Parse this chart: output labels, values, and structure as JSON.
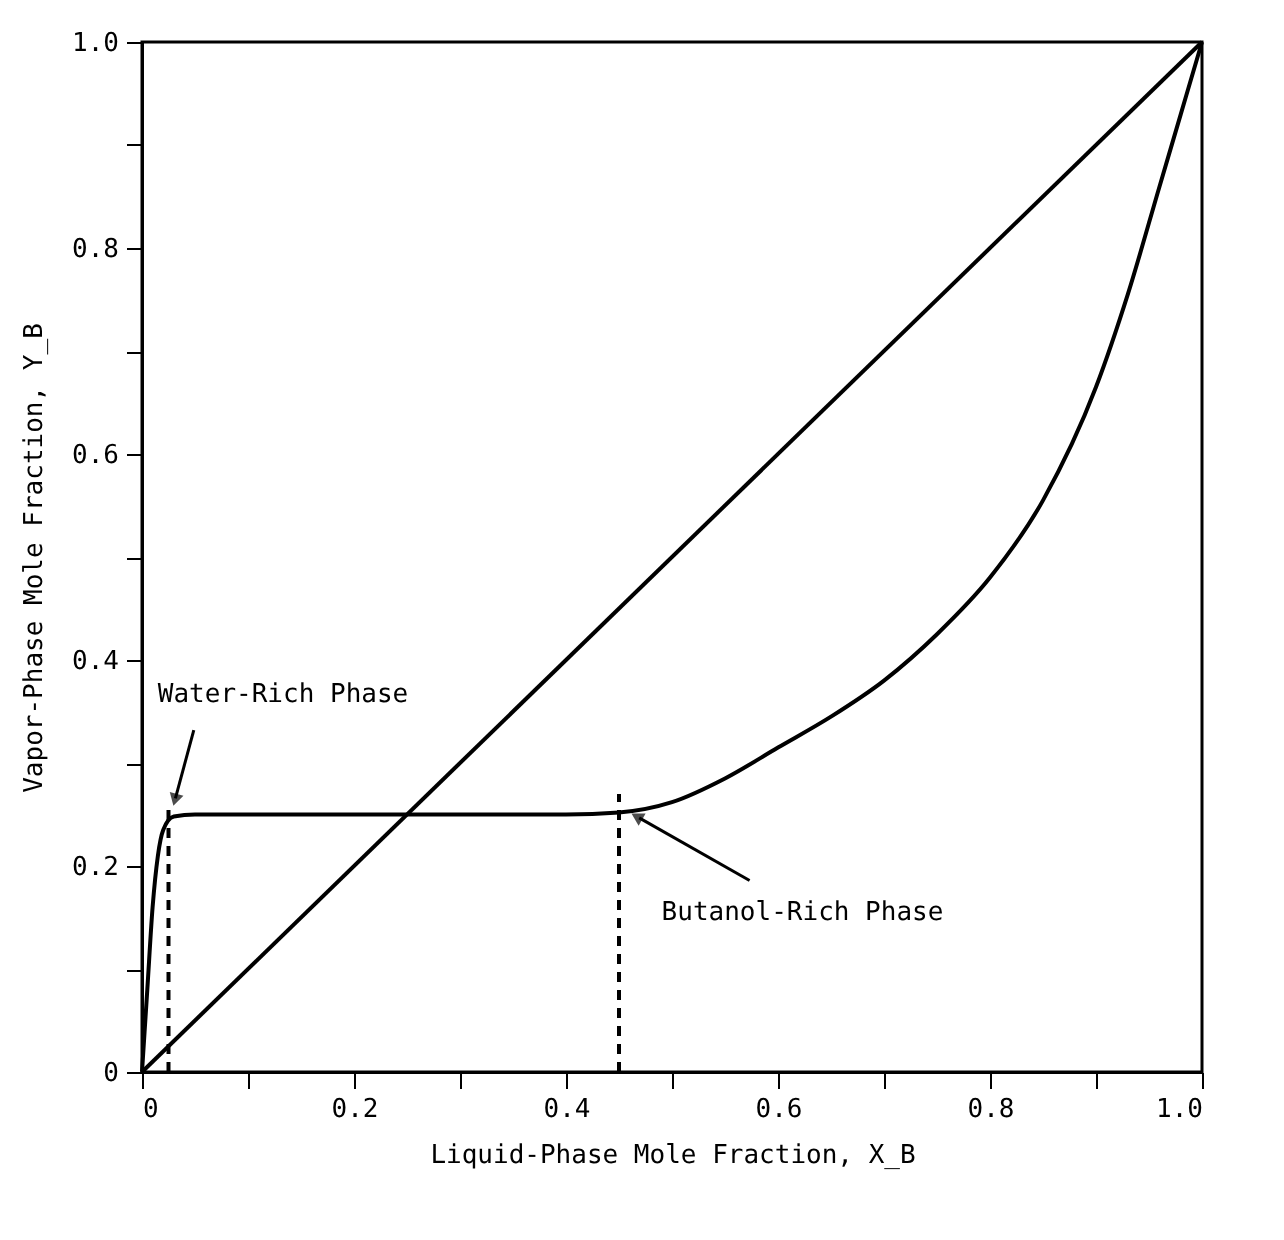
{
  "chart_data": {
    "type": "line",
    "xlabel": "Liquid-Phase Mole Fraction, X_B",
    "ylabel": "Vapor-Phase Mole Fraction, Y_B",
    "xlim": [
      0,
      1
    ],
    "ylim": [
      0,
      1
    ],
    "xticks": [
      0,
      {
        "value": 0.1,
        "label": null
      },
      0.2,
      {
        "value": 0.3,
        "label": null
      },
      0.4,
      {
        "value": 0.5,
        "label": null
      },
      0.6,
      {
        "value": 0.7,
        "label": null
      },
      0.8,
      {
        "value": 0.9,
        "label": null
      },
      {
        "value": 1,
        "label": "1.0"
      }
    ],
    "yticks": [
      0,
      {
        "value": 0.1,
        "label": null
      },
      0.2,
      {
        "value": 0.3,
        "label": null
      },
      0.4,
      {
        "value": 0.5,
        "label": null
      },
      0.6,
      {
        "value": 0.7,
        "label": null
      },
      0.8,
      {
        "value": 0.9,
        "label": null
      },
      {
        "value": 1,
        "label": "1.0"
      }
    ],
    "grid": false,
    "marker": "none",
    "line_style": "solid",
    "series": [
      {
        "color": "#000000",
        "x": [
          0,
          0.005,
          0.01,
          0.015,
          0.02,
          0.03,
          0.05,
          0.2,
          0.4,
          0.45,
          0.5,
          0.55,
          0.6,
          0.65,
          0.7,
          0.75,
          0.8,
          0.85,
          0.9,
          0.93,
          0.96,
          0.98,
          0.99,
          1.0
        ],
        "values": [
          0,
          0.08,
          0.16,
          0.21,
          0.235,
          0.248,
          0.25,
          0.25,
          0.25,
          0.252,
          0.262,
          0.285,
          0.315,
          0.345,
          0.38,
          0.425,
          0.48,
          0.555,
          0.665,
          0.755,
          0.86,
          0.93,
          0.965,
          1.0
        ]
      },
      {
        "color": "#000000",
        "x": [
          0,
          1
        ],
        "values": [
          0,
          1
        ]
      },
      {
        "color": "#000000",
        "line_style": "dashed",
        "x": [
          0.025,
          0.025
        ],
        "values": [
          0,
          0.26
        ]
      },
      {
        "color": "#000000",
        "line_style": "dashed",
        "x": [
          0.45,
          0.45
        ],
        "values": [
          0,
          0.27
        ]
      }
    ],
    "annotations": [
      {
        "text": "Water-Rich Phase",
        "x": 0.03,
        "y": 0.26
      },
      {
        "text": "Butanol-Rich Phase",
        "x": 0.46,
        "y": 0.252
      }
    ]
  }
}
